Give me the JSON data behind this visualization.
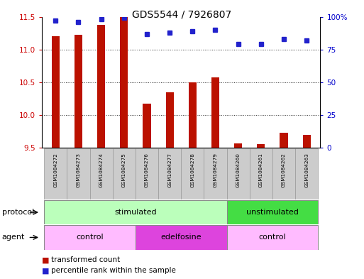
{
  "title": "GDS5544 / 7926807",
  "samples": [
    "GSM1084272",
    "GSM1084273",
    "GSM1084274",
    "GSM1084275",
    "GSM1084276",
    "GSM1084277",
    "GSM1084278",
    "GSM1084279",
    "GSM1084260",
    "GSM1084261",
    "GSM1084262",
    "GSM1084263"
  ],
  "bar_values": [
    11.2,
    11.22,
    11.38,
    11.5,
    10.17,
    10.35,
    10.5,
    10.58,
    9.57,
    9.56,
    9.73,
    9.7
  ],
  "dot_values": [
    97,
    96,
    98,
    99,
    87,
    88,
    89,
    90,
    79,
    79,
    83,
    82
  ],
  "ylim_left": [
    9.5,
    11.5
  ],
  "ylim_right": [
    0,
    100
  ],
  "yticks_left": [
    9.5,
    10.0,
    10.5,
    11.0,
    11.5
  ],
  "yticks_right": [
    0,
    25,
    50,
    75,
    100
  ],
  "ytick_labels_right": [
    "0",
    "25",
    "50",
    "75",
    "100%"
  ],
  "bar_color": "#bb1100",
  "dot_color": "#2222cc",
  "bar_baseline": 9.5,
  "protocol_groups": [
    {
      "label": "stimulated",
      "start": 0,
      "end": 7,
      "color": "#bbffbb"
    },
    {
      "label": "unstimulated",
      "start": 8,
      "end": 11,
      "color": "#44dd44"
    }
  ],
  "agent_groups": [
    {
      "label": "control",
      "start": 0,
      "end": 3,
      "color": "#ffbbff"
    },
    {
      "label": "edelfosine",
      "start": 4,
      "end": 7,
      "color": "#dd44dd"
    },
    {
      "label": "control",
      "start": 8,
      "end": 11,
      "color": "#ffbbff"
    }
  ],
  "tick_color_left": "#cc0000",
  "tick_color_right": "#0000cc",
  "grid_color": "#333333",
  "background_color": "#ffffff",
  "title_fontsize": 10,
  "axis_fontsize": 7.5,
  "sample_bg_color": "#cccccc",
  "sample_border_color": "#999999"
}
